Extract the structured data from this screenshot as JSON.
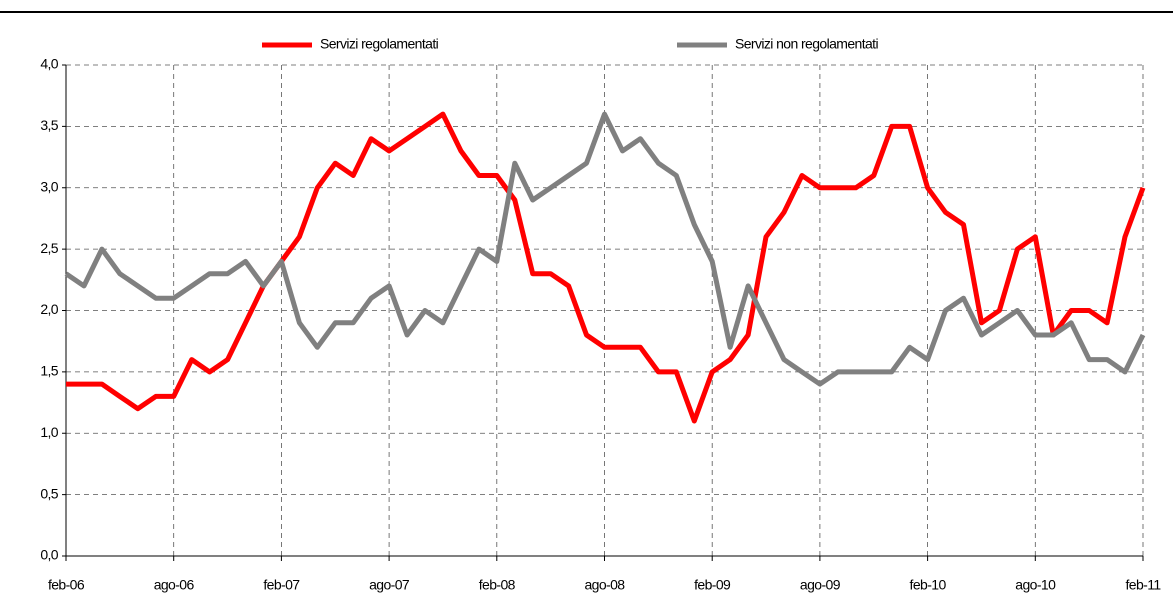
{
  "chart_data": {
    "type": "line",
    "categories": [
      "feb-06",
      null,
      null,
      null,
      null,
      null,
      "ago-06",
      null,
      null,
      null,
      null,
      null,
      "feb-07",
      null,
      null,
      null,
      null,
      null,
      "ago-07",
      null,
      null,
      null,
      null,
      null,
      "feb-08",
      null,
      null,
      null,
      null,
      null,
      "ago-08",
      null,
      null,
      null,
      null,
      null,
      "feb-09",
      null,
      null,
      null,
      null,
      null,
      "ago-09",
      null,
      null,
      null,
      null,
      null,
      "feb-10",
      null,
      null,
      null,
      null,
      null,
      "ago-10",
      null,
      null,
      null,
      null,
      null,
      "feb-11"
    ],
    "series": [
      {
        "name": "Servizi regolamentati",
        "color": "#ff0000",
        "values": [
          1.4,
          1.4,
          1.4,
          1.3,
          1.2,
          1.3,
          1.3,
          1.6,
          1.5,
          1.6,
          1.9,
          2.2,
          2.4,
          2.6,
          3.0,
          3.2,
          3.1,
          3.4,
          3.3,
          3.4,
          3.5,
          3.6,
          3.3,
          3.1,
          3.1,
          2.9,
          2.3,
          2.3,
          2.2,
          1.8,
          1.7,
          1.7,
          1.7,
          1.5,
          1.5,
          1.1,
          1.5,
          1.6,
          1.8,
          2.6,
          2.8,
          3.1,
          3.0,
          3.0,
          3.0,
          3.1,
          3.5,
          3.5,
          3.0,
          2.8,
          2.7,
          1.9,
          2.0,
          2.5,
          2.6,
          1.8,
          2.0,
          2.0,
          1.9,
          2.6,
          3.0
        ]
      },
      {
        "name": "Servizi non regolamentati",
        "color": "#808080",
        "values": [
          2.3,
          2.2,
          2.5,
          2.3,
          2.2,
          2.1,
          2.1,
          2.2,
          2.3,
          2.3,
          2.4,
          2.2,
          2.4,
          1.9,
          1.7,
          1.9,
          1.9,
          2.1,
          2.2,
          1.8,
          2.0,
          1.9,
          2.2,
          2.5,
          2.4,
          3.2,
          2.9,
          3.0,
          3.1,
          3.2,
          3.6,
          3.3,
          3.4,
          3.2,
          3.1,
          2.7,
          2.4,
          1.7,
          2.2,
          1.9,
          1.6,
          1.5,
          1.4,
          1.5,
          1.5,
          1.5,
          1.5,
          1.7,
          1.6,
          2.0,
          2.1,
          1.8,
          1.9,
          2.0,
          1.8,
          1.8,
          1.9,
          1.6,
          1.6,
          1.5,
          1.8
        ]
      }
    ],
    "ylim": [
      0,
      4
    ],
    "yticks": [
      {
        "value": 0,
        "label": "0,0"
      },
      {
        "value": 0.5,
        "label": "0,5"
      },
      {
        "value": 1,
        "label": "1,0"
      },
      {
        "value": 1.5,
        "label": "1,5"
      },
      {
        "value": 2,
        "label": "2,0"
      },
      {
        "value": 2.5,
        "label": "2,5"
      },
      {
        "value": 3,
        "label": "3,0"
      },
      {
        "value": 3.5,
        "label": "3,5"
      },
      {
        "value": 4,
        "label": "4,0"
      }
    ],
    "grid": true
  }
}
